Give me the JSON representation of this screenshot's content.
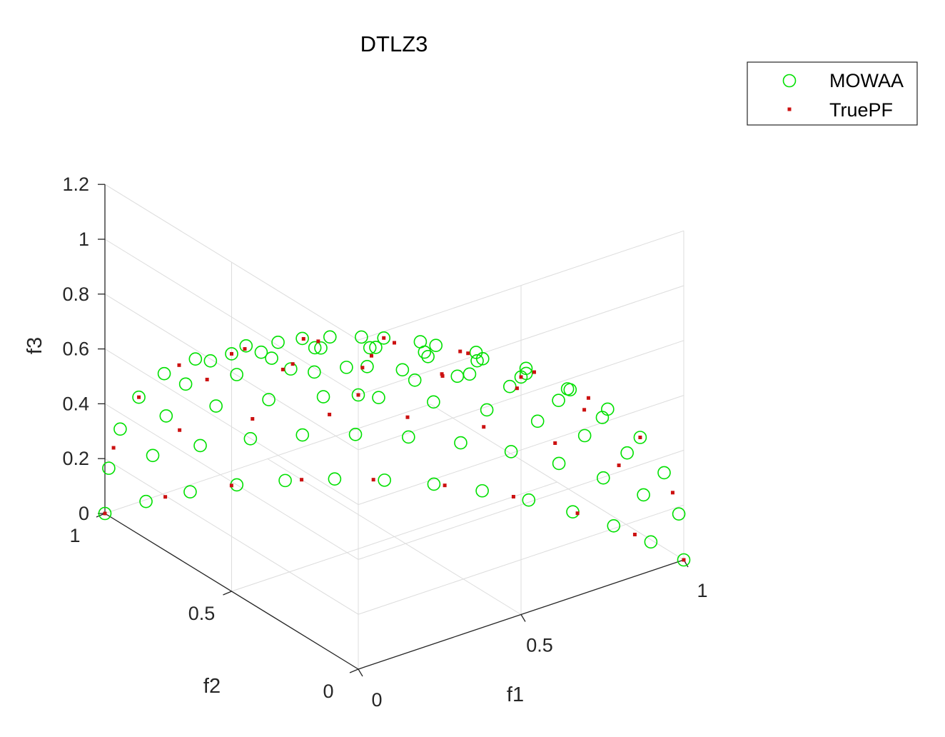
{
  "chart_data": {
    "type": "scatter",
    "dimensions": 3,
    "title": "DTLZ3",
    "xlabel": "f1",
    "ylabel": "f2",
    "zlabel": "f3",
    "xlim": [
      0,
      1
    ],
    "ylim": [
      0,
      1
    ],
    "zlim": [
      0,
      1.2
    ],
    "xticks": [
      "0",
      "0.5",
      "1"
    ],
    "yticks": [
      "0",
      "0.5",
      "1"
    ],
    "zticks": [
      "0",
      "0.2",
      "0.4",
      "0.6",
      "0.8",
      "1",
      "1.2"
    ],
    "grid": true,
    "legend_position": "top-right",
    "surface": "unit sphere octant f1^2 + f2^2 + f3^2 = 1",
    "series": [
      {
        "name": "MOWAA",
        "marker": "open-circle",
        "color": "#00e000",
        "elevation_angles_deg": [
          0,
          10,
          20,
          30,
          40,
          50,
          60,
          70,
          80,
          90
        ],
        "azimuth_counts": [
          14,
          13,
          12,
          11,
          10,
          8,
          7,
          5,
          3,
          1
        ]
      },
      {
        "name": "TruePF",
        "marker": "dot",
        "color": "#cc1111",
        "elevation_angles_deg": [
          0,
          15,
          30,
          45,
          60,
          75,
          90
        ],
        "azimuth_counts": [
          10,
          9,
          8,
          7,
          5,
          3,
          1
        ]
      }
    ]
  }
}
